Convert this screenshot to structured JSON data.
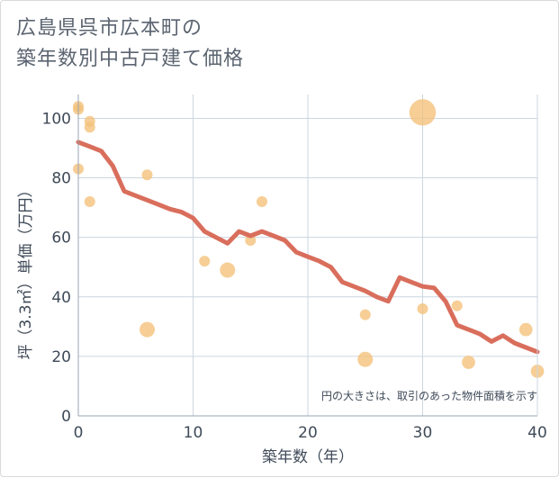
{
  "title_lines": [
    "広島県呉市広本町の",
    "築年数別中古戸建て価格"
  ],
  "colors": {
    "bubble": "#f4c27c",
    "line": "#d96e5c",
    "grid": "#ccd6e0",
    "text": "#3f4a58",
    "title": "#5b6470"
  },
  "chart_data": {
    "type": "scatter",
    "title": "広島県呉市広本町の築年数別中古戸建て価格",
    "xlabel": "築年数（年）",
    "ylabel": "坪（3.3㎡）単価（万円）",
    "xlim": [
      0,
      40
    ],
    "ylim": [
      0,
      108
    ],
    "xticks": [
      0,
      10,
      20,
      30,
      40
    ],
    "yticks": [
      0,
      20,
      40,
      60,
      80,
      100
    ],
    "grid": true,
    "annotation": "円の大きさは、取引のあった物件面積を示す",
    "bubbles": [
      {
        "x": 0,
        "y": 104,
        "size": 1
      },
      {
        "x": 0,
        "y": 103,
        "size": 1
      },
      {
        "x": 0,
        "y": 83,
        "size": 1
      },
      {
        "x": 1,
        "y": 99,
        "size": 1
      },
      {
        "x": 1,
        "y": 97,
        "size": 1
      },
      {
        "x": 1,
        "y": 72,
        "size": 1
      },
      {
        "x": 6,
        "y": 81,
        "size": 1
      },
      {
        "x": 6,
        "y": 29,
        "size": 2
      },
      {
        "x": 11,
        "y": 52,
        "size": 1
      },
      {
        "x": 13,
        "y": 49,
        "size": 2
      },
      {
        "x": 15,
        "y": 59,
        "size": 1
      },
      {
        "x": 16,
        "y": 72,
        "size": 1
      },
      {
        "x": 25,
        "y": 34,
        "size": 1
      },
      {
        "x": 25,
        "y": 19,
        "size": 2
      },
      {
        "x": 30,
        "y": 102,
        "size": 6
      },
      {
        "x": 30,
        "y": 36,
        "size": 1
      },
      {
        "x": 33,
        "y": 37,
        "size": 1
      },
      {
        "x": 34,
        "y": 18,
        "size": 1.5
      },
      {
        "x": 39,
        "y": 29,
        "size": 1.5
      },
      {
        "x": 40,
        "y": 15,
        "size": 1.5
      }
    ],
    "trend": {
      "x": [
        0,
        1,
        2,
        3,
        4,
        5,
        6,
        7,
        8,
        9,
        10,
        11,
        12,
        13,
        14,
        15,
        16,
        17,
        18,
        19,
        20,
        21,
        22,
        23,
        24,
        25,
        26,
        27,
        28,
        29,
        30,
        31,
        32,
        33,
        34,
        35,
        36,
        37,
        38,
        39,
        40
      ],
      "y": [
        92,
        90.5,
        89,
        84,
        75.5,
        74,
        72.5,
        71,
        69.5,
        68.5,
        66.5,
        62,
        60,
        58,
        62,
        60.5,
        62,
        60.5,
        59,
        55,
        53.5,
        52,
        50,
        45,
        43.5,
        42,
        40,
        38.5,
        46.5,
        45,
        43.5,
        43,
        38.5,
        30.5,
        29,
        27.5,
        25,
        27,
        24.5,
        23,
        21.5
      ]
    }
  }
}
